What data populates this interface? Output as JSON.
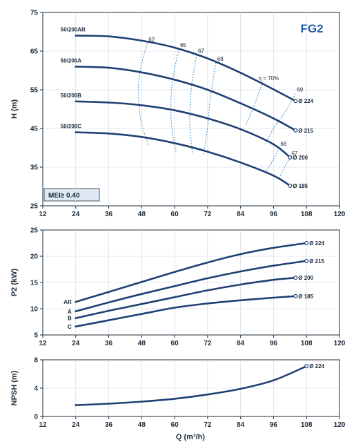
{
  "chart_data": [
    {
      "type": "line",
      "title": "FG2",
      "xlabel": "",
      "ylabel": "H (m)",
      "xlim": [
        12,
        120
      ],
      "ylim": [
        25,
        75
      ],
      "x_ticks": [
        "12",
        "24",
        "36",
        "48",
        "60",
        "72",
        "84",
        "96",
        "108",
        "120"
      ],
      "y_ticks": [
        "25",
        "35",
        "45",
        "55",
        "65",
        "75"
      ],
      "annotation": "MEI≥ 0.40",
      "series": [
        {
          "name": "50/200AR",
          "end_label": "Ø 224",
          "color": "#1f3f73",
          "x": [
            24,
            36,
            48,
            60,
            72,
            84,
            96,
            104
          ],
          "values": [
            69,
            68.8,
            67.7,
            65.9,
            63.1,
            59.4,
            55.1,
            52.1
          ]
        },
        {
          "name": "50/200A",
          "end_label": "Ø 215",
          "color": "#1f3f73",
          "x": [
            24,
            36,
            48,
            60,
            72,
            84,
            96,
            104
          ],
          "values": [
            61,
            60.7,
            59.5,
            57.6,
            55,
            51.5,
            47.6,
            44.5
          ]
        },
        {
          "name": "50/200B",
          "end_label": "Ø 200",
          "color": "#1f3f73",
          "x": [
            24,
            36,
            48,
            60,
            72,
            84,
            96,
            102
          ],
          "values": [
            52,
            51.7,
            51,
            49.7,
            47.6,
            44.8,
            40.9,
            37.5
          ]
        },
        {
          "name": "50/200C",
          "end_label": "Ø 185",
          "color": "#1f3f73",
          "x": [
            24,
            36,
            48,
            60,
            72,
            84,
            96,
            102
          ],
          "values": [
            44,
            43.7,
            42.8,
            41.2,
            39,
            36.2,
            32.8,
            30.2
          ]
        }
      ],
      "efficiency_lines": [
        {
          "label": "62",
          "x": [
            50,
            47,
            47.5,
            50.5
          ],
          "values": [
            67,
            58,
            48,
            40.5
          ]
        },
        {
          "label": "65",
          "x": [
            61.5,
            59,
            58.8,
            60.5
          ],
          "values": [
            65.5,
            56,
            46.5,
            39
          ]
        },
        {
          "label": "67",
          "x": [
            68,
            66,
            65.5,
            66.5
          ],
          "values": [
            64,
            55,
            46,
            38.5
          ]
        },
        {
          "label": "68",
          "x": [
            75,
            73,
            72,
            70.5
          ],
          "values": [
            62,
            53,
            45.5,
            38
          ]
        },
        {
          "label": "η = 70%",
          "x": [
            92,
            89,
            86
          ],
          "values": [
            57,
            51,
            46
          ]
        },
        {
          "label": "69",
          "x": [
            104,
            100,
            96,
            93
          ],
          "values": [
            54,
            49,
            45,
            41
          ]
        },
        {
          "label": "68",
          "x": [
            98,
            96,
            93
          ],
          "values": [
            40,
            37,
            33.5
          ]
        },
        {
          "label": "67",
          "x": [
            102,
            100,
            98
          ],
          "values": [
            37.5,
            35,
            32
          ]
        }
      ]
    },
    {
      "type": "line",
      "title": "",
      "xlabel": "",
      "ylabel": "P2 (kW)",
      "xlim": [
        12,
        120
      ],
      "ylim": [
        5,
        25
      ],
      "x_ticks": [
        "12",
        "24",
        "36",
        "48",
        "60",
        "72",
        "84",
        "96",
        "108",
        "120"
      ],
      "y_ticks": [
        "5",
        "10",
        "15",
        "20",
        "25"
      ],
      "series": [
        {
          "name": "AR",
          "end_label": "Ø 224",
          "color": "#1f3f73",
          "x": [
            24,
            36,
            48,
            60,
            72,
            84,
            96,
            108
          ],
          "values": [
            11.3,
            13.2,
            15.1,
            17,
            18.8,
            20.4,
            21.6,
            22.5
          ]
        },
        {
          "name": "A",
          "end_label": "Ø 215",
          "color": "#1f3f73",
          "x": [
            24,
            36,
            48,
            60,
            72,
            84,
            96,
            108
          ],
          "values": [
            9.5,
            11.2,
            12.8,
            14.3,
            15.8,
            17.1,
            18.2,
            19.1
          ]
        },
        {
          "name": "B",
          "end_label": "Ø 200",
          "color": "#1f3f73",
          "x": [
            24,
            36,
            48,
            60,
            72,
            84,
            96,
            104
          ],
          "values": [
            8.2,
            9.6,
            10.9,
            12.2,
            13.5,
            14.6,
            15.5,
            15.9
          ]
        },
        {
          "name": "C",
          "end_label": "Ø 185",
          "color": "#1f3f73",
          "x": [
            24,
            36,
            48,
            60,
            72,
            84,
            96,
            104
          ],
          "values": [
            6.6,
            7.8,
            9,
            10.2,
            11,
            11.6,
            12.1,
            12.4
          ]
        }
      ]
    },
    {
      "type": "line",
      "title": "",
      "xlabel": "Q (m³/h)",
      "ylabel": "NPSH (m)",
      "xlim": [
        12,
        120
      ],
      "ylim": [
        0,
        8
      ],
      "x_ticks": [
        "12",
        "24",
        "36",
        "48",
        "60",
        "72",
        "84",
        "96",
        "108",
        "120"
      ],
      "y_ticks": [
        "0",
        "4",
        "8"
      ],
      "series": [
        {
          "name": "",
          "end_label": "Ø 224",
          "color": "#1f3f73",
          "x": [
            24,
            36,
            48,
            60,
            72,
            84,
            96,
            108
          ],
          "values": [
            1.6,
            1.8,
            2.1,
            2.5,
            3.1,
            3.9,
            5.1,
            7.1
          ]
        }
      ]
    }
  ]
}
